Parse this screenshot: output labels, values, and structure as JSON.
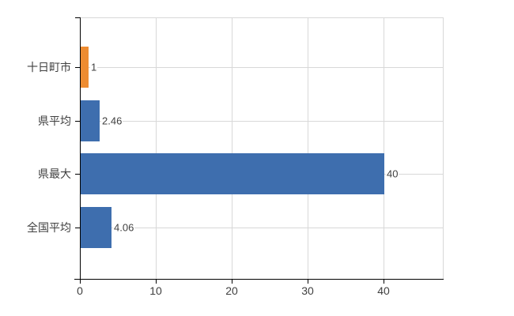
{
  "chart_data": {
    "type": "bar",
    "orientation": "horizontal",
    "title": "",
    "xlabel": "",
    "ylabel": "",
    "categories": [
      "十日町市",
      "県平均",
      "県最大",
      "全国平均"
    ],
    "values": [
      1,
      2.46,
      40,
      4.06
    ],
    "data_labels": [
      "1",
      "2.46",
      "40",
      "4.06"
    ],
    "bar_colors": [
      "#EE8C31",
      "#3E6EAE",
      "#3E6EAE",
      "#3E6EAE"
    ],
    "x_axis": {
      "min": 0,
      "max": 47.8,
      "ticks": [
        0,
        10,
        20,
        30,
        40
      ],
      "tick_labels": [
        "0",
        "10",
        "20",
        "30",
        "40"
      ]
    },
    "legend": null,
    "grid": {
      "show": true,
      "color": "#D8D8D8"
    },
    "colors": {
      "axis": "#000000",
      "text": "#404040",
      "background": "#FFFFFF",
      "series_blue": "#3E6EAE",
      "highlight_orange": "#EE8C31"
    }
  }
}
